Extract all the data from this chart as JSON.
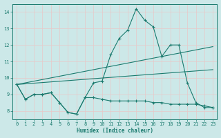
{
  "xlabel": "Humidex (Indice chaleur)",
  "bg_color": "#cce8e8",
  "grid_color": "#e8c8c8",
  "line_color": "#1a7a6e",
  "xlim": [
    -0.5,
    23.5
  ],
  "ylim": [
    7.5,
    14.5
  ],
  "xticks": [
    0,
    1,
    2,
    3,
    4,
    5,
    6,
    7,
    8,
    9,
    10,
    11,
    12,
    13,
    14,
    15,
    16,
    17,
    18,
    19,
    20,
    21,
    22,
    23
  ],
  "yticks": [
    8,
    9,
    10,
    11,
    12,
    13,
    14
  ],
  "lines": [
    {
      "x": [
        0,
        1,
        2,
        3,
        4,
        5,
        6,
        7,
        8,
        9,
        10,
        11,
        12,
        13,
        14,
        15,
        16,
        17,
        18,
        19,
        20,
        21,
        22,
        23
      ],
      "y": [
        9.6,
        8.7,
        9.0,
        9.0,
        9.1,
        8.5,
        7.9,
        7.8,
        8.8,
        9.7,
        9.8,
        11.4,
        12.4,
        12.9,
        14.2,
        13.5,
        13.1,
        11.3,
        12.0,
        12.0,
        9.7,
        8.5,
        8.2,
        8.2
      ],
      "marker": true
    },
    {
      "x": [
        0,
        1,
        2,
        3,
        4,
        5,
        6,
        7,
        8,
        9,
        10,
        11,
        12,
        13,
        14,
        15,
        16,
        17,
        18,
        19,
        20,
        21,
        22,
        23
      ],
      "y": [
        9.6,
        8.7,
        9.0,
        9.0,
        9.1,
        8.5,
        7.9,
        7.8,
        8.8,
        8.8,
        8.7,
        8.6,
        8.6,
        8.6,
        8.6,
        8.6,
        8.5,
        8.5,
        8.4,
        8.4,
        8.4,
        8.4,
        8.3,
        8.2
      ],
      "marker": true
    },
    {
      "x": [
        0,
        23
      ],
      "y": [
        9.6,
        11.9
      ],
      "marker": false
    },
    {
      "x": [
        0,
        23
      ],
      "y": [
        9.6,
        10.5
      ],
      "marker": false
    }
  ]
}
